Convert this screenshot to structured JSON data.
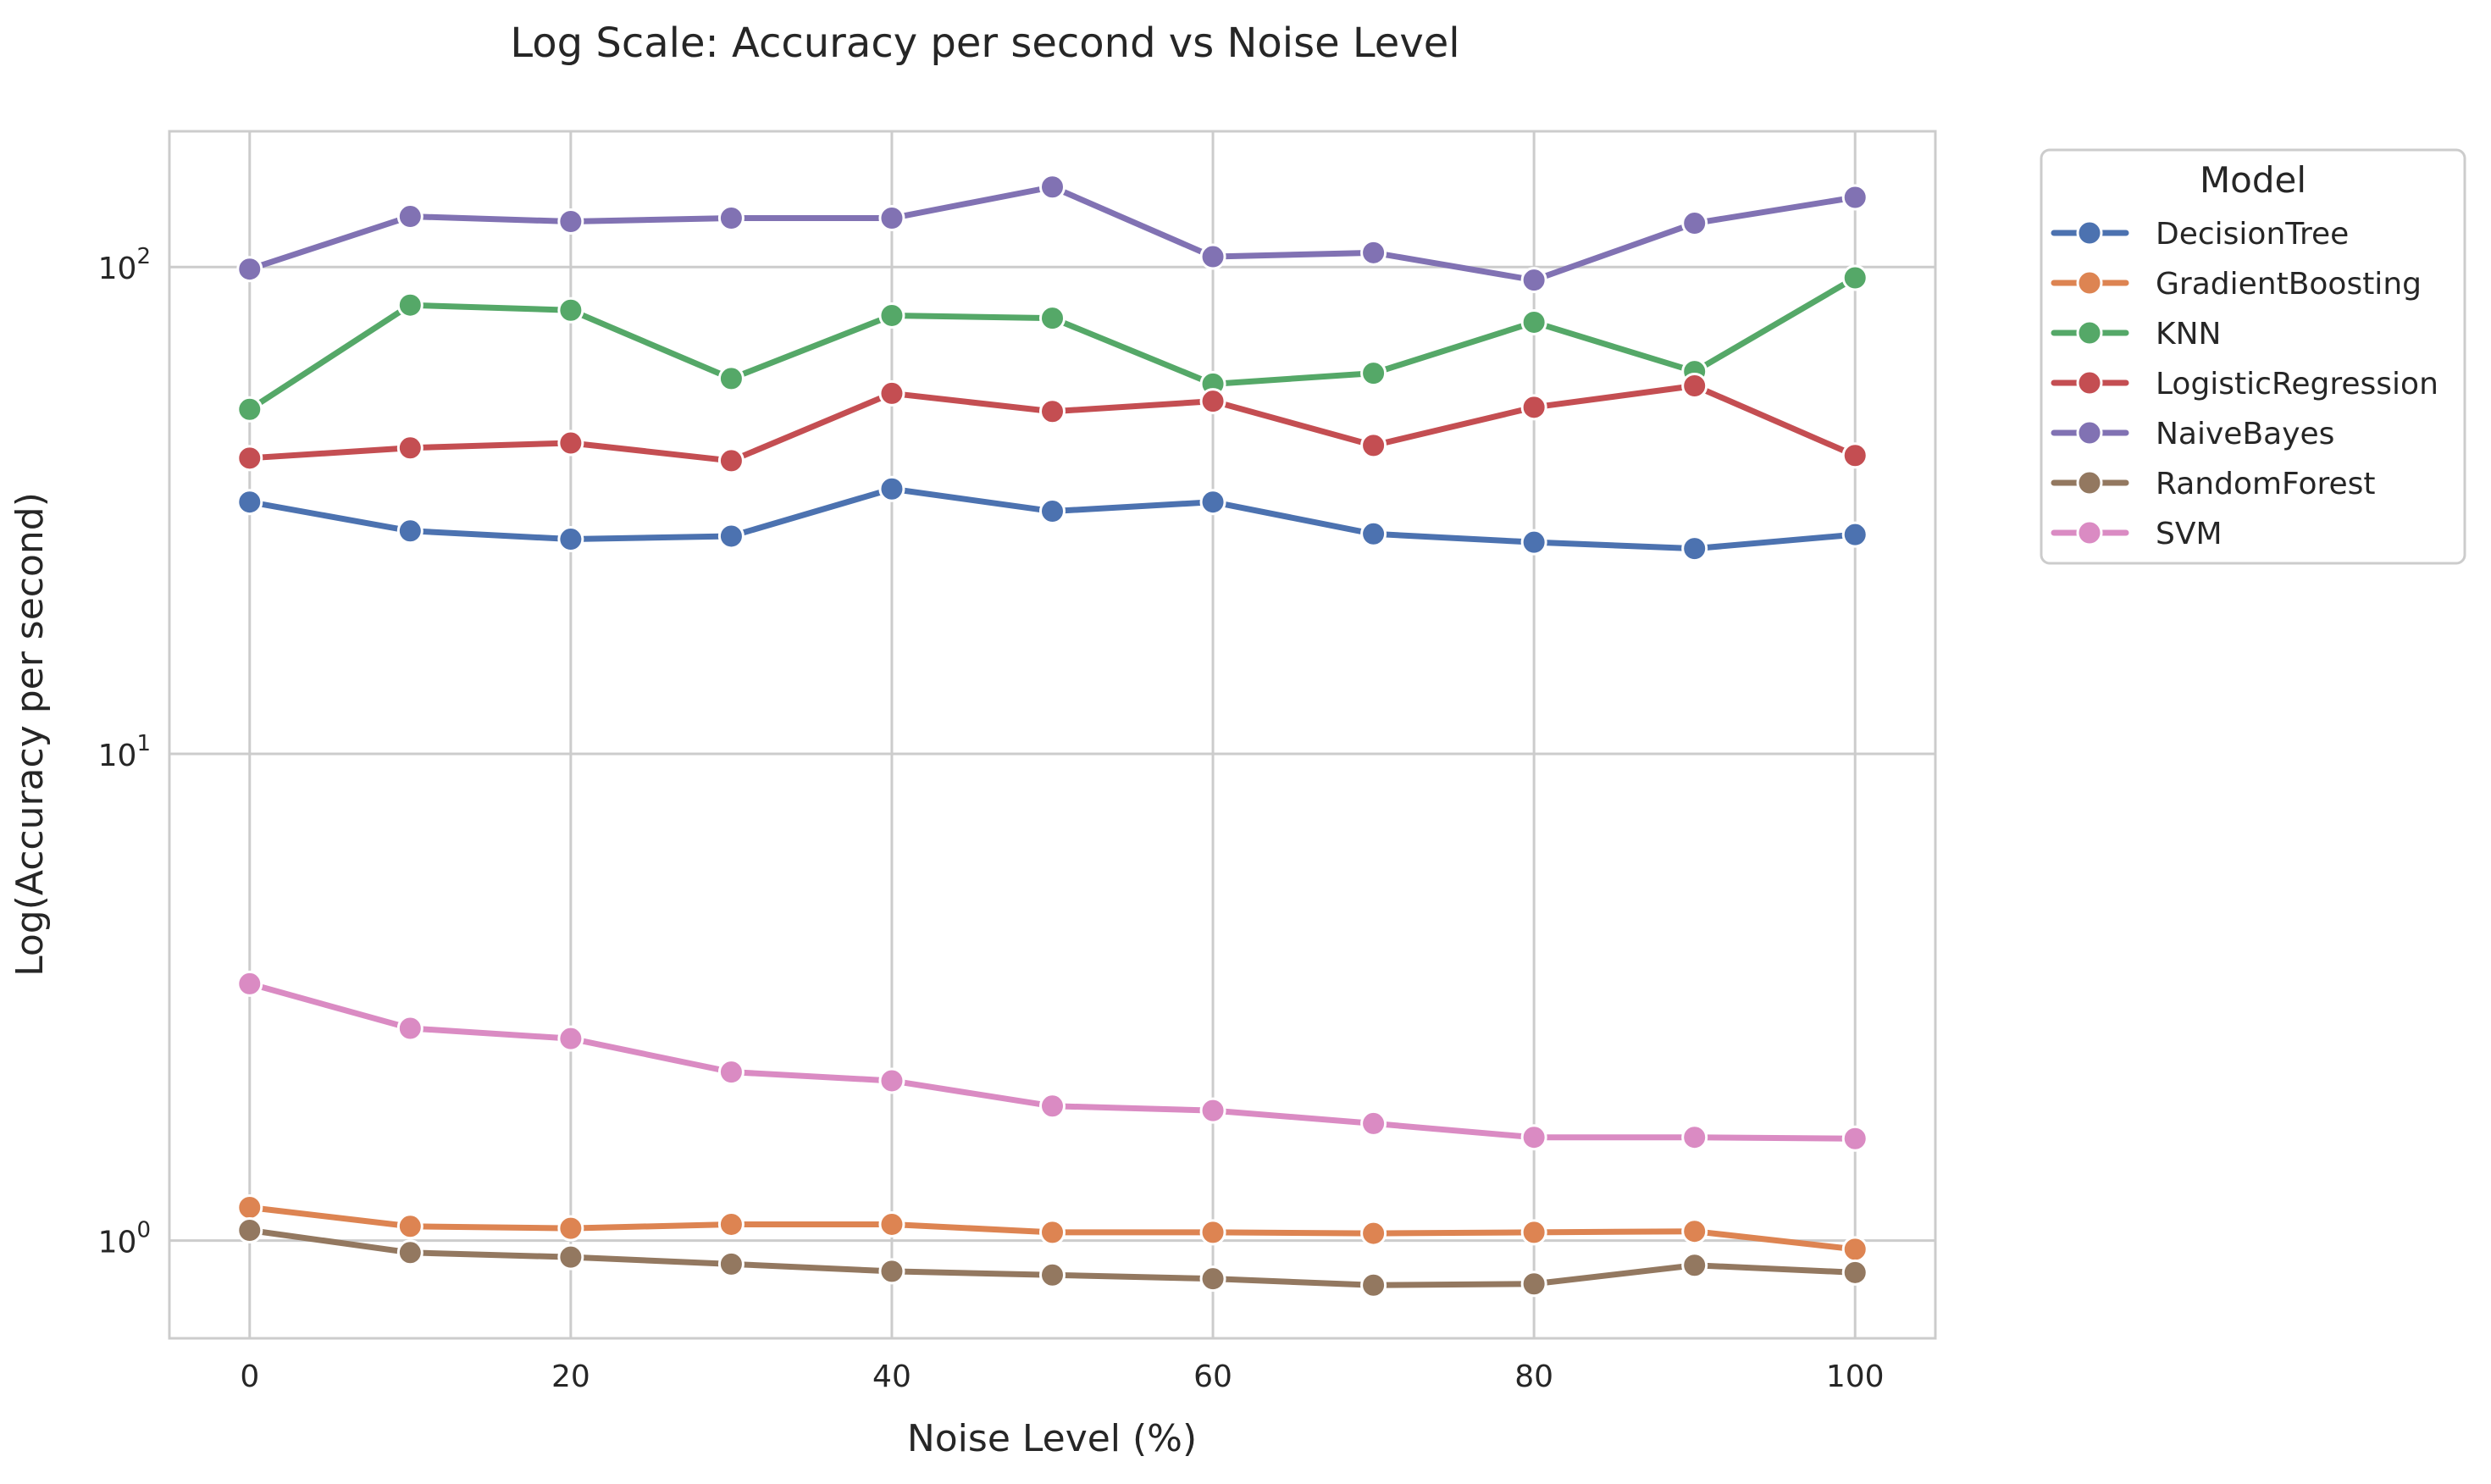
{
  "chart_data": {
    "type": "line",
    "title": "Log Scale: Accuracy per second vs Noise Level",
    "xlabel": "Noise Level (%)",
    "ylabel": "Log(Accuracy per second)",
    "yscale": "log",
    "xlim": [
      -5,
      105
    ],
    "ylim": [
      0.63,
      190
    ],
    "grid": true,
    "x": [
      0,
      10,
      20,
      30,
      40,
      50,
      60,
      70,
      80,
      90,
      100
    ],
    "xticks": [
      0,
      20,
      40,
      60,
      80,
      100
    ],
    "xtick_labels": [
      "0",
      "20",
      "40",
      "60",
      "80",
      "100"
    ],
    "yticks": [
      1,
      10,
      100
    ],
    "ytick_labels": [
      {
        "base": "10",
        "exp": "0"
      },
      {
        "base": "10",
        "exp": "1"
      },
      {
        "base": "10",
        "exp": "2"
      }
    ],
    "legend": {
      "title": "Model",
      "placement": "outside-right"
    },
    "series": [
      {
        "name": "DecisionTree",
        "color": "#4c72b0",
        "values": [
          32.9,
          28.7,
          27.6,
          28.0,
          35.0,
          31.5,
          32.9,
          28.3,
          27.2,
          26.4,
          28.2
        ]
      },
      {
        "name": "GradientBoosting",
        "color": "#dd8452",
        "values": [
          1.17,
          1.07,
          1.06,
          1.08,
          1.08,
          1.04,
          1.04,
          1.035,
          1.04,
          1.045,
          0.96
        ]
      },
      {
        "name": "KNN",
        "color": "#55a868",
        "values": [
          51.0,
          83.5,
          81.5,
          59.0,
          79.5,
          78.5,
          57.5,
          60.5,
          77.0,
          61.0,
          95.0
        ]
      },
      {
        "name": "LogisticRegression",
        "color": "#c44e52",
        "values": [
          40.5,
          42.5,
          43.5,
          40.0,
          55.0,
          50.5,
          53.0,
          43.0,
          51.5,
          57.0,
          41.0
        ]
      },
      {
        "name": "NaiveBayes",
        "color": "#8172b3",
        "values": [
          99,
          127,
          124,
          126,
          126,
          146,
          105,
          107,
          94,
          123,
          139
        ]
      },
      {
        "name": "RandomForest",
        "color": "#937860",
        "values": [
          1.05,
          0.945,
          0.925,
          0.895,
          0.865,
          0.85,
          0.835,
          0.81,
          0.815,
          0.89,
          0.86
        ]
      },
      {
        "name": "SVM",
        "color": "#da8bc3",
        "values": [
          3.37,
          2.73,
          2.6,
          2.22,
          2.13,
          1.89,
          1.85,
          1.74,
          1.63,
          1.63,
          1.62
        ]
      }
    ]
  }
}
